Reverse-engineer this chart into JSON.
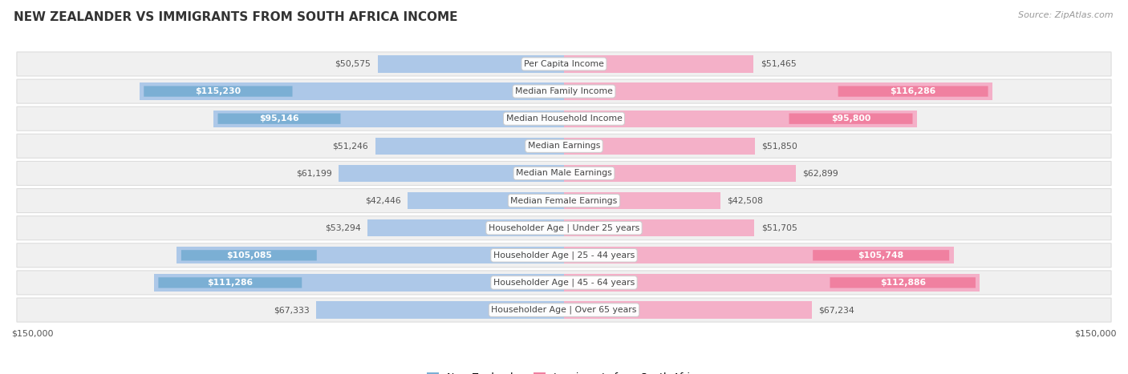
{
  "title": "NEW ZEALANDER VS IMMIGRANTS FROM SOUTH AFRICA INCOME",
  "source": "Source: ZipAtlas.com",
  "categories": [
    "Per Capita Income",
    "Median Family Income",
    "Median Household Income",
    "Median Earnings",
    "Median Male Earnings",
    "Median Female Earnings",
    "Householder Age | Under 25 years",
    "Householder Age | 25 - 44 years",
    "Householder Age | 45 - 64 years",
    "Householder Age | Over 65 years"
  ],
  "nz_values": [
    50575,
    115230,
    95146,
    51246,
    61199,
    42446,
    53294,
    105085,
    111286,
    67333
  ],
  "sa_values": [
    51465,
    116286,
    95800,
    51850,
    62899,
    42508,
    51705,
    105748,
    112886,
    67234
  ],
  "nz_labels": [
    "$50,575",
    "$115,230",
    "$95,146",
    "$51,246",
    "$61,199",
    "$42,446",
    "$53,294",
    "$105,085",
    "$111,286",
    "$67,333"
  ],
  "sa_labels": [
    "$51,465",
    "$116,286",
    "$95,800",
    "$51,850",
    "$62,899",
    "$42,508",
    "$51,705",
    "$105,748",
    "$112,886",
    "$67,234"
  ],
  "nz_color": "#7bafd4",
  "sa_color": "#f080a0",
  "nz_color_light": "#adc8e8",
  "sa_color_light": "#f4b0c8",
  "max_value": 150000,
  "bar_height": 0.62,
  "row_bg_color": "#f0f0f0",
  "row_border_color": "#dddddd",
  "legend_nz": "New Zealander",
  "legend_sa": "Immigrants from South Africa",
  "xlabel_left": "$150,000",
  "xlabel_right": "$150,000",
  "label_inside_threshold": 0.45,
  "fig_bg": "#ffffff",
  "title_color": "#333333",
  "source_color": "#999999",
  "outer_label_color": "#555555"
}
